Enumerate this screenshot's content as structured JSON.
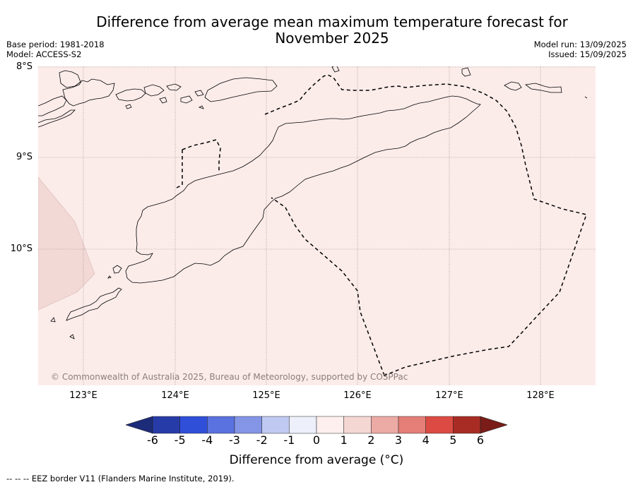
{
  "title": "Difference from average mean maximum temperature forecast for November 2025",
  "title_line1": "Difference from average mean maximum temperature forecast for",
  "title_line2": "November 2025",
  "base_period": "Base period: 1981-2018",
  "model": "Model: ACCESS-S2",
  "model_run": "Model run: 13/09/2025",
  "issued": "Issued: 15/09/2025",
  "copyright": "© Commonwealth of Australia 2025, Bureau of Meteorology, supported by COSPPac",
  "lat_labels": [
    "8°S",
    "9°S",
    "10°S"
  ],
  "lon_labels": [
    "123°E",
    "124°E",
    "125°E",
    "126°E",
    "127°E",
    "128°E"
  ],
  "colorbar": {
    "label": "Difference from average (°C)",
    "ticks": [
      "-6",
      "-5",
      "-4",
      "-3",
      "-2",
      "-1",
      "0",
      "1",
      "2",
      "3",
      "4",
      "5",
      "6"
    ],
    "colors": [
      "#273ba8",
      "#2f4fd9",
      "#5a72e0",
      "#8495e6",
      "#c0c9f2",
      "#edf0fb",
      "#fcefed",
      "#f4d6d2",
      "#ecaaa4",
      "#e47e76",
      "#dc4b43",
      "#a82c24"
    ],
    "under_color": "#1c2b7a",
    "over_color": "#7a1c18"
  },
  "map_fill_color": "#fbecea",
  "patch_color": "#f3d8d5",
  "footnote": "--  --  -- EEZ border V11 (Flanders Marine Institute, 2019)."
}
